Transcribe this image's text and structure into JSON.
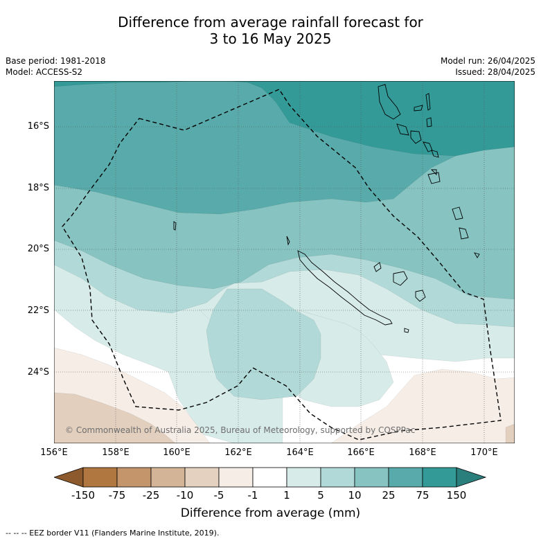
{
  "title_line1": "Difference from average rainfall forecast for",
  "title_line2": "3 to 16 May 2025",
  "base_period": "Base period: 1981-2018",
  "model": "Model: ACCESS-S2",
  "model_run": "Model run: 26/04/2025",
  "issued": "Issued: 28/04/2025",
  "lat_labels": [
    "16°S",
    "18°S",
    "20°S",
    "22°S",
    "24°S"
  ],
  "lon_labels": [
    "156°E",
    "158°E",
    "160°E",
    "162°E",
    "164°E",
    "166°E",
    "168°E",
    "170°E"
  ],
  "copyright": "© Commonwealth of Australia 2025, Bureau of Meteorology, supported by COSPPac",
  "colorbar": {
    "ticks": [
      "-150",
      "-75",
      "-25",
      "-10",
      "-5",
      "-1",
      "1",
      "5",
      "10",
      "25",
      "75",
      "150"
    ],
    "colors": [
      "#8c5a2c",
      "#b07840",
      "#c4956a",
      "#d4b496",
      "#e5d1bf",
      "#f5ede6",
      "#ffffff",
      "#d7ebe9",
      "#b0d9d7",
      "#86c3c1",
      "#58abaa",
      "#339a97",
      "#2a7e7c"
    ],
    "label": "Difference from average (mm)"
  },
  "footnote": "--  --  -- EEZ border V11 (Flanders Marine Institute, 2019).",
  "map_colors": {
    "tan_dark": "#e2cfbe",
    "tan_light": "#f5ede6",
    "white": "#ffffff",
    "teal1": "#d7ebe9",
    "teal2": "#b0d9d7",
    "teal3": "#86c3c1",
    "teal4": "#58abaa",
    "teal5": "#339a97"
  }
}
